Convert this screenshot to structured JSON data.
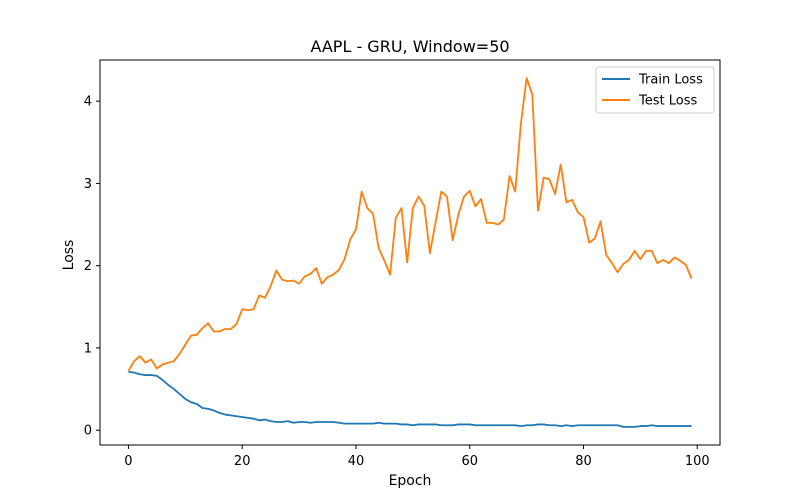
{
  "chart_data": {
    "type": "line",
    "title": "AAPL - GRU, Window=50",
    "xlabel": "Epoch",
    "ylabel": "Loss",
    "xlim": [
      -5,
      104
    ],
    "ylim": [
      -0.18,
      4.5
    ],
    "xticks": [
      0,
      20,
      40,
      60,
      80,
      100
    ],
    "yticks": [
      0,
      1,
      2,
      3,
      4
    ],
    "grid": false,
    "legend_position": "top-right",
    "x": [
      0,
      1,
      2,
      3,
      4,
      5,
      6,
      7,
      8,
      9,
      10,
      11,
      12,
      13,
      14,
      15,
      16,
      17,
      18,
      19,
      20,
      21,
      22,
      23,
      24,
      25,
      26,
      27,
      28,
      29,
      30,
      31,
      32,
      33,
      34,
      35,
      36,
      37,
      38,
      39,
      40,
      41,
      42,
      43,
      44,
      45,
      46,
      47,
      48,
      49,
      50,
      51,
      52,
      53,
      54,
      55,
      56,
      57,
      58,
      59,
      60,
      61,
      62,
      63,
      64,
      65,
      66,
      67,
      68,
      69,
      70,
      71,
      72,
      73,
      74,
      75,
      76,
      77,
      78,
      79,
      80,
      81,
      82,
      83,
      84,
      85,
      86,
      87,
      88,
      89,
      90,
      91,
      92,
      93,
      94,
      95,
      96,
      97,
      98,
      99
    ],
    "series": [
      {
        "name": "Train Loss",
        "color": "#1f77b4",
        "values": [
          0.71,
          0.7,
          0.68,
          0.67,
          0.67,
          0.66,
          0.61,
          0.55,
          0.5,
          0.44,
          0.38,
          0.34,
          0.32,
          0.27,
          0.26,
          0.24,
          0.21,
          0.19,
          0.18,
          0.17,
          0.16,
          0.15,
          0.14,
          0.12,
          0.13,
          0.11,
          0.1,
          0.1,
          0.11,
          0.09,
          0.1,
          0.1,
          0.09,
          0.1,
          0.1,
          0.1,
          0.1,
          0.09,
          0.08,
          0.08,
          0.08,
          0.08,
          0.08,
          0.08,
          0.09,
          0.08,
          0.08,
          0.08,
          0.07,
          0.07,
          0.06,
          0.07,
          0.07,
          0.07,
          0.07,
          0.06,
          0.06,
          0.06,
          0.07,
          0.07,
          0.07,
          0.06,
          0.06,
          0.06,
          0.06,
          0.06,
          0.06,
          0.06,
          0.06,
          0.05,
          0.06,
          0.06,
          0.07,
          0.07,
          0.06,
          0.06,
          0.05,
          0.06,
          0.05,
          0.06,
          0.06,
          0.06,
          0.06,
          0.06,
          0.06,
          0.06,
          0.06,
          0.04,
          0.04,
          0.04,
          0.05,
          0.05,
          0.06,
          0.05,
          0.05,
          0.05,
          0.05,
          0.05,
          0.05,
          0.05
        ]
      },
      {
        "name": "Test Loss",
        "color": "#ff7f0e",
        "values": [
          0.72,
          0.84,
          0.9,
          0.82,
          0.86,
          0.75,
          0.8,
          0.82,
          0.84,
          0.93,
          1.04,
          1.15,
          1.16,
          1.24,
          1.3,
          1.2,
          1.2,
          1.23,
          1.23,
          1.29,
          1.47,
          1.46,
          1.47,
          1.64,
          1.61,
          1.75,
          1.94,
          1.83,
          1.81,
          1.82,
          1.78,
          1.87,
          1.9,
          1.97,
          1.78,
          1.86,
          1.89,
          1.95,
          2.08,
          2.32,
          2.44,
          2.9,
          2.7,
          2.63,
          2.21,
          2.06,
          1.89,
          2.58,
          2.7,
          2.04,
          2.7,
          2.84,
          2.73,
          2.15,
          2.53,
          2.9,
          2.84,
          2.31,
          2.62,
          2.84,
          2.91,
          2.72,
          2.81,
          2.52,
          2.52,
          2.5,
          2.56,
          3.09,
          2.9,
          3.73,
          4.28,
          4.08,
          2.67,
          3.07,
          3.05,
          2.87,
          3.23,
          2.77,
          2.8,
          2.65,
          2.59,
          2.28,
          2.33,
          2.54,
          2.13,
          2.03,
          1.92,
          2.02,
          2.07,
          2.18,
          2.08,
          2.18,
          2.18,
          2.03,
          2.07,
          2.03,
          2.1,
          2.06,
          2.01,
          1.84
        ]
      }
    ]
  }
}
